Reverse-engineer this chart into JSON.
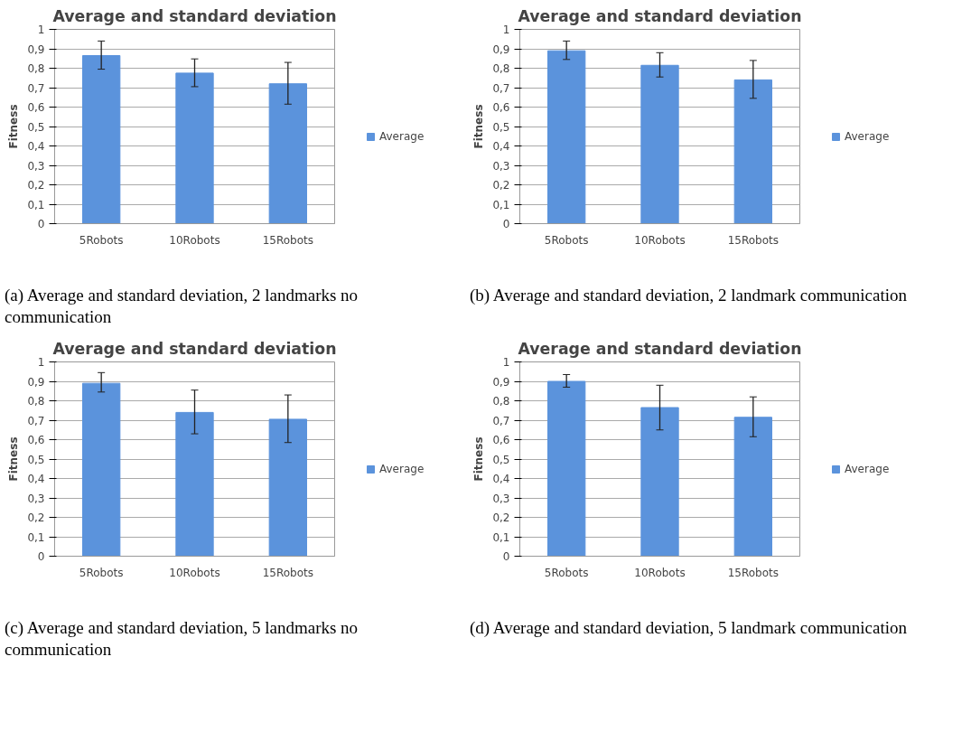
{
  "chart_data": [
    {
      "type": "bar",
      "title": "Average and standard deviation",
      "ylabel": "Fitness",
      "categories": [
        "5Robots",
        "10Robots",
        "15Robots"
      ],
      "series": [
        {
          "name": "Average",
          "color": "#5b93dc",
          "values": [
            0.865,
            0.775,
            0.72
          ],
          "errors": [
            [
              0.795,
              0.94
            ],
            [
              0.705,
              0.848
            ],
            [
              0.615,
              0.83
            ]
          ]
        }
      ],
      "ylim": [
        0,
        1
      ],
      "yticks": [
        0,
        {
          "value": 0.1,
          "label": "0,1"
        },
        {
          "value": 0.2,
          "label": "0,2"
        },
        {
          "value": 0.3,
          "label": "0,3"
        },
        {
          "value": 0.4,
          "label": "0,4"
        },
        {
          "value": 0.5,
          "label": "0,5"
        },
        {
          "value": 0.6,
          "label": "0,6"
        },
        {
          "value": 0.7,
          "label": "0,7"
        },
        {
          "value": 0.8,
          "label": "0,8"
        },
        {
          "value": 0.9,
          "label": "0,9"
        },
        1
      ],
      "grid": "y",
      "legend": "right",
      "annotations": [
        "(a) Average and standard deviation, 2 landmarks no communication"
      ]
    },
    {
      "type": "bar",
      "title": "Average and standard deviation",
      "ylabel": "Fitness",
      "categories": [
        "5Robots",
        "10Robots",
        "15Robots"
      ],
      "series": [
        {
          "name": "Average",
          "color": "#5b93dc",
          "values": [
            0.89,
            0.815,
            0.74
          ],
          "errors": [
            [
              0.845,
              0.94
            ],
            [
              0.755,
              0.88
            ],
            [
              0.645,
              0.84
            ]
          ]
        }
      ],
      "ylim": [
        0,
        1
      ],
      "yticks": [
        0,
        {
          "value": 0.1,
          "label": "0,1"
        },
        {
          "value": 0.2,
          "label": "0,2"
        },
        {
          "value": 0.3,
          "label": "0,3"
        },
        {
          "value": 0.4,
          "label": "0,4"
        },
        {
          "value": 0.5,
          "label": "0,5"
        },
        {
          "value": 0.6,
          "label": "0,6"
        },
        {
          "value": 0.7,
          "label": "0,7"
        },
        {
          "value": 0.8,
          "label": "0,8"
        },
        {
          "value": 0.9,
          "label": "0,9"
        },
        1
      ],
      "grid": "y",
      "legend": "right",
      "annotations": [
        "(b) Average and standard deviation, 2 landmark communication"
      ]
    },
    {
      "type": "bar",
      "title": "Average and standard deviation",
      "ylabel": "Fitness",
      "categories": [
        "5Robots",
        "10Robots",
        "15Robots"
      ],
      "series": [
        {
          "name": "Average",
          "color": "#5b93dc",
          "values": [
            0.89,
            0.74,
            0.705
          ],
          "errors": [
            [
              0.845,
              0.945
            ],
            [
              0.63,
              0.855
            ],
            [
              0.585,
              0.83
            ]
          ]
        }
      ],
      "ylim": [
        0,
        1
      ],
      "yticks": [
        0,
        {
          "value": 0.1,
          "label": "0,1"
        },
        {
          "value": 0.2,
          "label": "0,2"
        },
        {
          "value": 0.3,
          "label": "0,3"
        },
        {
          "value": 0.4,
          "label": "0,4"
        },
        {
          "value": 0.5,
          "label": "0,5"
        },
        {
          "value": 0.6,
          "label": "0,6"
        },
        {
          "value": 0.7,
          "label": "0,7"
        },
        {
          "value": 0.8,
          "label": "0,8"
        },
        {
          "value": 0.9,
          "label": "0,9"
        },
        1
      ],
      "grid": "y",
      "legend": "right",
      "annotations": [
        "(c) Average and standard deviation, 5 landmarks no communication"
      ]
    },
    {
      "type": "bar",
      "title": "Average and standard deviation",
      "ylabel": "Fitness",
      "categories": [
        "5Robots",
        "10Robots",
        "15Robots"
      ],
      "series": [
        {
          "name": "Average",
          "color": "#5b93dc",
          "values": [
            0.9,
            0.765,
            0.715
          ],
          "errors": [
            [
              0.87,
              0.935
            ],
            [
              0.65,
              0.88
            ],
            [
              0.615,
              0.82
            ]
          ]
        }
      ],
      "ylim": [
        0,
        1
      ],
      "yticks": [
        0,
        {
          "value": 0.1,
          "label": "0,1"
        },
        {
          "value": 0.2,
          "label": "0,2"
        },
        {
          "value": 0.3,
          "label": "0,3"
        },
        {
          "value": 0.4,
          "label": "0,4"
        },
        {
          "value": 0.5,
          "label": "0,5"
        },
        {
          "value": 0.6,
          "label": "0,6"
        },
        {
          "value": 0.7,
          "label": "0,7"
        },
        {
          "value": 0.8,
          "label": "0,8"
        },
        {
          "value": 0.9,
          "label": "0,9"
        },
        1
      ],
      "grid": "y",
      "legend": "right",
      "annotations": [
        "(d) Average and standard deviation, 5 landmark communication"
      ]
    }
  ]
}
